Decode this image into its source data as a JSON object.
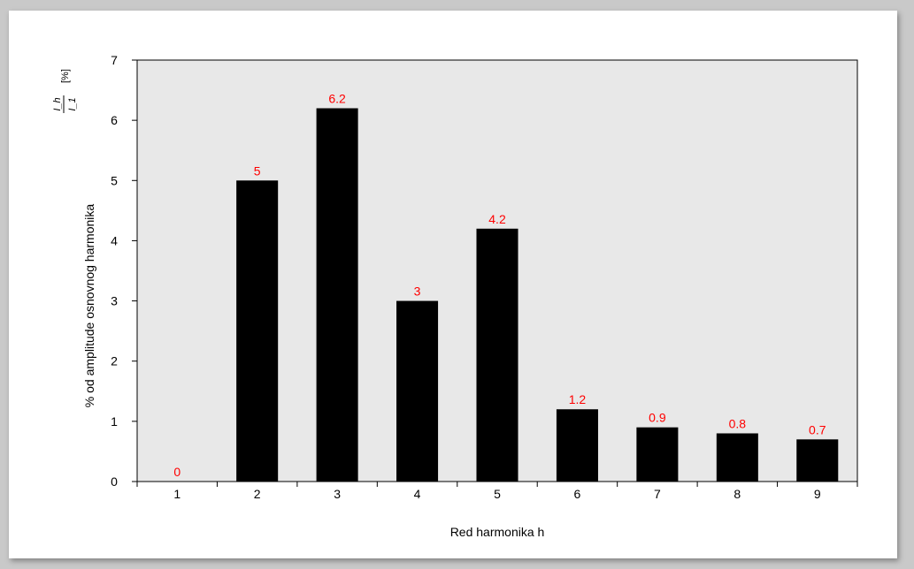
{
  "chart_data": {
    "type": "bar",
    "title": "",
    "xlabel": "Red harmonika h",
    "ylabel": "% od amplitude osnovnog harmonika",
    "ylabel_formula": {
      "numerator": "I_h",
      "denominator": "I_1",
      "suffix": "[%]"
    },
    "categories": [
      "1",
      "2",
      "3",
      "4",
      "5",
      "6",
      "7",
      "8",
      "9"
    ],
    "values": [
      0,
      5,
      6.2,
      3,
      4.2,
      1.2,
      0.9,
      0.8,
      0.7
    ],
    "data_labels": [
      "0",
      "5",
      "6.2",
      "3",
      "4.2",
      "1.2",
      "0.9",
      "0.8",
      "0.7"
    ],
    "ylim": [
      0,
      7
    ],
    "yticks": [
      "0",
      "1",
      "2",
      "3",
      "4",
      "5",
      "6",
      "7"
    ],
    "grid": false,
    "bar_color": "#000000",
    "label_color": "#ff0000",
    "plot_background": "#e8e8e8"
  }
}
